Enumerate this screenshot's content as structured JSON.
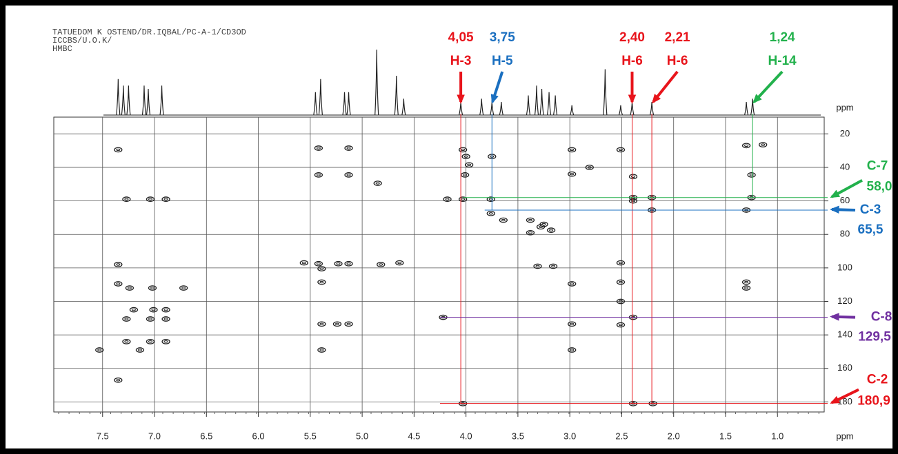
{
  "chart_data": {
    "type": "scatter",
    "header": [
      "TATUEDOM K OSTEND/DR.IQBAL/PC-A-1/CD3OD",
      "ICCBS/U.O.K/",
      "HMBC"
    ],
    "x_label": "ppm",
    "y_label": "ppm",
    "xlim": [
      7.97,
      0.55
    ],
    "ylim": [
      10,
      186
    ],
    "xticks": [
      7.5,
      {
        "value": 7,
        "label": "7.0"
      },
      6.5,
      {
        "value": 6,
        "label": "6.0"
      },
      5.5,
      {
        "value": 5,
        "label": "5.0"
      },
      4.5,
      {
        "value": 4,
        "label": "4.0"
      },
      3.5,
      {
        "value": 3,
        "label": "3.0"
      },
      2.5,
      {
        "value": 2,
        "label": "2.0"
      },
      1.5,
      {
        "value": 1,
        "label": "1.0"
      }
    ],
    "yticks": [
      20,
      40,
      60,
      80,
      100,
      120,
      140,
      160,
      180
    ],
    "grid": true,
    "projection": {
      "x": [
        7.35,
        7.3,
        7.25,
        7.1,
        7.06,
        6.93,
        5.45,
        5.4,
        5.17,
        5.13,
        4.86,
        4.67,
        4.6,
        4.05,
        3.85,
        3.75,
        3.66,
        3.4,
        3.32,
        3.27,
        3.2,
        3.14,
        2.98,
        2.66,
        2.51,
        2.4,
        2.21,
        1.3,
        1.24
      ],
      "values": [
        0.55,
        0.45,
        0.45,
        0.45,
        0.4,
        0.45,
        0.35,
        0.55,
        0.35,
        0.35,
        1.0,
        0.6,
        0.25,
        0.2,
        0.25,
        0.2,
        0.2,
        0.3,
        0.45,
        0.4,
        0.35,
        0.3,
        0.15,
        0.7,
        0.15,
        0.2,
        0.2,
        0.2,
        0.25
      ]
    },
    "peaks": {
      "x": [
        7.35,
        7.27,
        7.04,
        6.89,
        7.35,
        7.35,
        7.24,
        7.02,
        6.72,
        7.2,
        7.01,
        6.89,
        7.27,
        7.04,
        6.89,
        7.27,
        7.04,
        6.89,
        7.53,
        7.14,
        7.35,
        5.42,
        5.13,
        5.42,
        5.13,
        4.85,
        5.42,
        5.23,
        5.13,
        4.82,
        4.64,
        5.56,
        5.39,
        5.39,
        5.39,
        5.13,
        5.24,
        5.39,
        4.03,
        4.0,
        3.75,
        4.18,
        4.03,
        3.76,
        3.76,
        3.64,
        3.38,
        3.28,
        3.18,
        3.25,
        3.38,
        2.98,
        2.98,
        2.98,
        2.98,
        2.98,
        3.16,
        3.31,
        2.51,
        2.51,
        2.51,
        2.51,
        2.51,
        2.39,
        2.39,
        2.39,
        2.21,
        2.21,
        2.39,
        4.22,
        2.39,
        2.2,
        4.03,
        1.3,
        1.25,
        1.25,
        1.3,
        1.3,
        1.3,
        1.14,
        4.01,
        3.97,
        2.81
      ],
      "y": [
        29.5,
        59,
        59,
        59,
        98,
        109.5,
        112,
        112,
        112,
        125,
        125,
        125,
        130.5,
        130.5,
        130.5,
        144,
        144,
        144,
        149,
        149,
        167,
        28.5,
        28.5,
        44.5,
        44.5,
        49.5,
        97.5,
        97.5,
        97.5,
        98,
        97,
        97,
        100.5,
        108.5,
        133.5,
        133.5,
        133.5,
        149,
        29.5,
        33.5,
        33.5,
        59,
        59,
        59,
        67.5,
        71.5,
        71.5,
        75.5,
        77.5,
        74,
        79,
        44,
        29.5,
        109.5,
        133.5,
        149,
        99,
        99,
        29.5,
        97,
        108.5,
        120,
        134,
        45.5,
        58,
        60,
        58,
        65.5,
        129.5,
        129.5,
        181,
        181,
        181,
        27,
        44.5,
        58,
        65.5,
        108.5,
        112,
        26.5,
        44.5,
        38.5,
        40
      ]
    },
    "h_annotations": [
      {
        "value": 4.05,
        "label": "4,05",
        "text": "H-3",
        "color": "#e8141b"
      },
      {
        "value": 3.75,
        "label": "3,75",
        "text": "H-5",
        "color": "#1a6fc0"
      },
      {
        "value": 2.4,
        "label": "2,40",
        "text": "H-6",
        "color": "#e8141b"
      },
      {
        "value": 2.21,
        "label": "2,21",
        "text": "H-6",
        "color": "#e8141b"
      },
      {
        "value": 1.24,
        "label": "1,24",
        "text": "H-14",
        "color": "#22b14c"
      }
    ],
    "c_annotations": [
      {
        "value": 58.0,
        "label": "58,0",
        "text": "C-7",
        "color": "#22b14c"
      },
      {
        "value": 65.5,
        "label": "65,5",
        "text": "C-3",
        "color": "#1a6fc0"
      },
      {
        "value": 129.5,
        "label": "129,5",
        "text": "C-8",
        "color": "#7030a0"
      },
      {
        "value": 180.9,
        "label": "180,9",
        "text": "C-2",
        "color": "#e8141b"
      }
    ]
  }
}
